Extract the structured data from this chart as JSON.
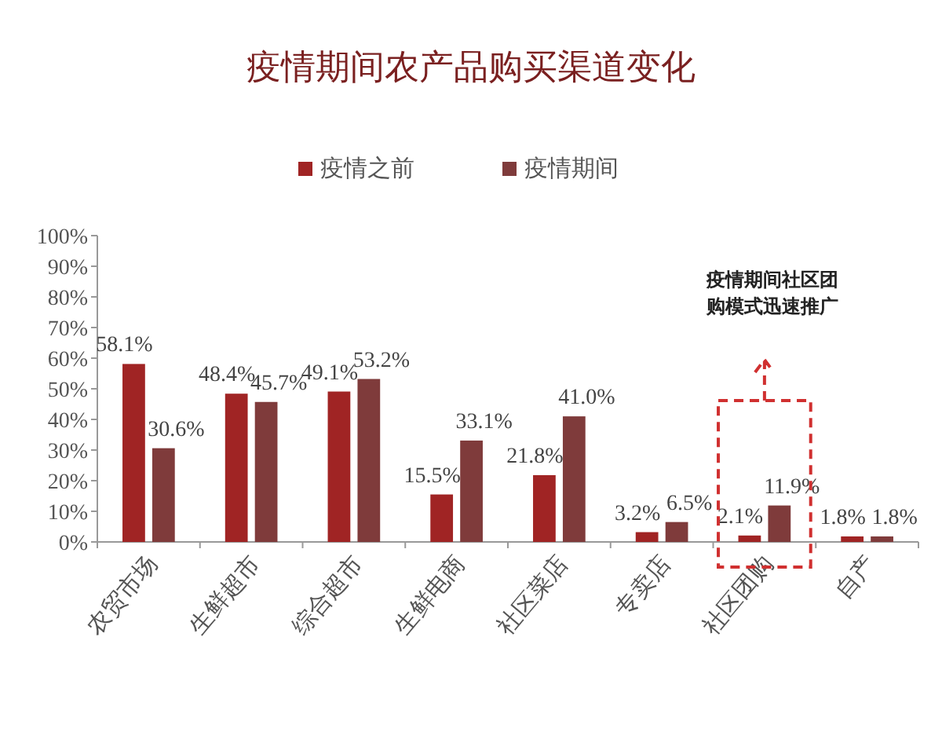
{
  "chart_data": {
    "type": "bar",
    "title": "疫情期间农产品购买渠道变化",
    "categories": [
      "农贸市场",
      "生鲜超市",
      "综合超市",
      "生鲜电商",
      "社区菜店",
      "专卖店",
      "社区团购",
      "自产"
    ],
    "series": [
      {
        "name": "疫情之前",
        "color": "#a02424",
        "values": [
          58.1,
          48.4,
          49.1,
          15.5,
          21.8,
          3.2,
          2.1,
          1.8
        ],
        "value_labels": [
          "58.1%",
          "48.4%",
          "49.1%",
          "15.5%",
          "21.8%",
          "3.2%",
          "2.1%",
          "1.8%"
        ]
      },
      {
        "name": "疫情期间",
        "color": "#7f3b3b",
        "values": [
          30.6,
          45.7,
          53.2,
          33.1,
          41.0,
          6.5,
          11.9,
          1.8
        ],
        "value_labels": [
          "30.6%",
          "45.7%",
          "53.2%",
          "33.1%",
          "41.0%",
          "6.5%",
          "11.9%",
          "1.8%"
        ]
      }
    ],
    "ylim": [
      0,
      100
    ],
    "yticks": [
      {
        "value": 0,
        "label": "0%"
      },
      {
        "value": 10,
        "label": "10%"
      },
      {
        "value": 20,
        "label": "20%"
      },
      {
        "value": 30,
        "label": "30%"
      },
      {
        "value": 40,
        "label": "40%"
      },
      {
        "value": 50,
        "label": "50%"
      },
      {
        "value": 60,
        "label": "60%"
      },
      {
        "value": 70,
        "label": "70%"
      },
      {
        "value": 80,
        "label": "80%"
      },
      {
        "value": 90,
        "label": "90%"
      },
      {
        "value": 100,
        "label": "100%"
      }
    ],
    "legend": "top",
    "grid": false,
    "annotations": [
      "疫情期间社区团购模式迅速推广"
    ]
  }
}
